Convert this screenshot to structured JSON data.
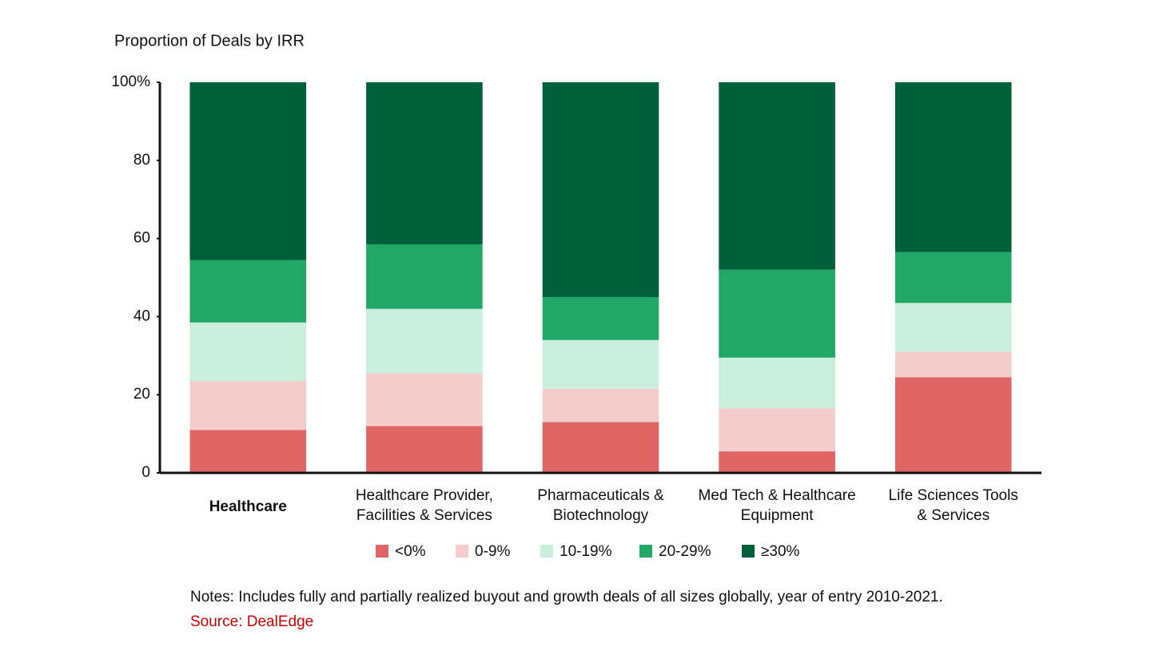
{
  "chart_data": {
    "type": "stacked_bar",
    "title": "Proportion of Deals by IRR",
    "categories": [
      "Healthcare",
      "Healthcare Provider,\nFacilities & Services",
      "Pharmaceuticals &\nBiotechnology",
      "Med Tech & Healthcare\nEquipment",
      "Life Sciences Tools\n& Services"
    ],
    "series": [
      {
        "name": "<0%",
        "color": "#e06666",
        "values": [
          11,
          12,
          13,
          5.5,
          24.5
        ]
      },
      {
        "name": "0-9%",
        "color": "#f4cccc",
        "values": [
          12.5,
          13.5,
          8.5,
          11,
          6.5
        ]
      },
      {
        "name": "10-19%",
        "color": "#c9eedb",
        "values": [
          15,
          16.5,
          12.5,
          13,
          12.5
        ]
      },
      {
        "name": "20-29%",
        "color": "#22a866",
        "values": [
          16,
          16.5,
          11,
          22.5,
          13
        ]
      },
      {
        "name": "≥30%",
        "color": "#00603a",
        "values": [
          45.5,
          41.5,
          55,
          48,
          43.5
        ]
      }
    ],
    "ylim": [
      0,
      100
    ],
    "yticks": [
      0,
      20,
      40,
      60,
      80,
      {
        "value": 100,
        "label": "100%"
      }
    ],
    "grid": false,
    "legend": "bottom",
    "notes": "Notes: Includes fully and partially realized buyout and growth deals of all sizes globally, year of entry 2010-2021.",
    "source": "Source: DealEdge"
  }
}
